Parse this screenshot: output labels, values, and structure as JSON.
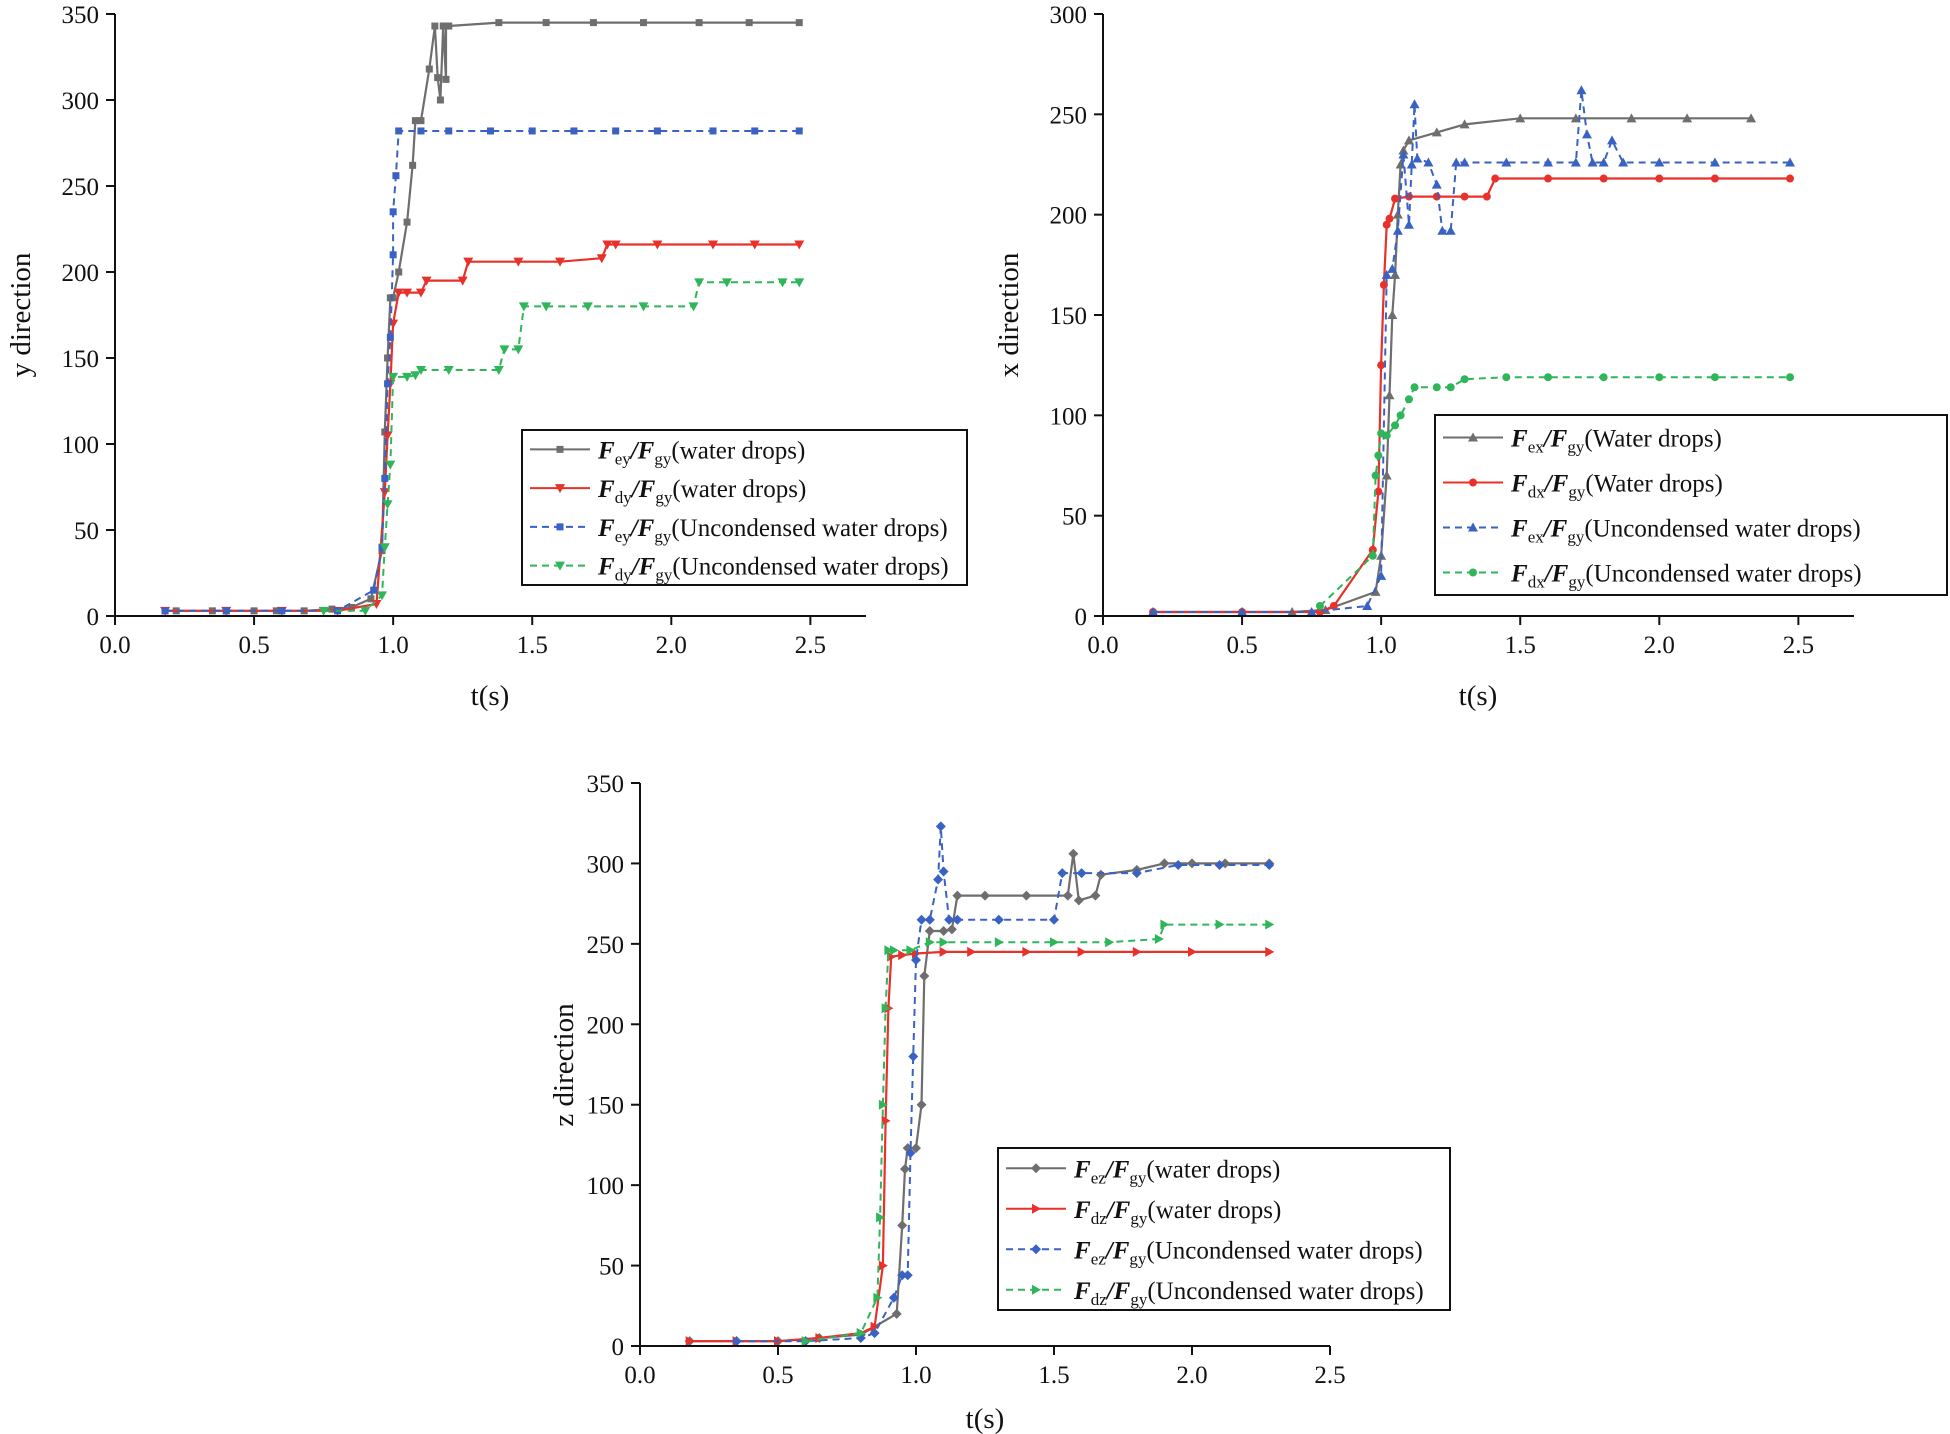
{
  "colors": {
    "gray": "#6e6e6e",
    "red": "#e8312a",
    "blue": "#3a62c2",
    "green": "#2fb55a",
    "axis": "#111111"
  },
  "chart_data": [
    {
      "type": "line",
      "id": "y",
      "xlabel": "t(s)",
      "ylabel": "y direction",
      "xlim": [
        0,
        2.7
      ],
      "ylim": [
        0,
        350
      ],
      "xticks": [
        "0.0",
        "0.5",
        "1.0",
        "1.5",
        "2.0",
        "2.5"
      ],
      "yticks": [
        "0",
        "50",
        "100",
        "150",
        "200",
        "250",
        "300",
        "350"
      ],
      "legend_position": "center-right",
      "series": [
        {
          "sym": "F",
          "sub1": "ey",
          "sub2": "gy",
          "desc": "(water drops)",
          "color": "gray",
          "dash": false,
          "marker": "square",
          "x": [
            0.18,
            0.22,
            0.35,
            0.4,
            0.5,
            0.58,
            0.68,
            0.78,
            0.85,
            0.92,
            0.96,
            0.97,
            0.98,
            0.99,
            1.0,
            1.02,
            1.05,
            1.07,
            1.08,
            1.1,
            1.13,
            1.15,
            1.16,
            1.17,
            1.18,
            1.19,
            1.19,
            1.2,
            1.38,
            1.55,
            1.72,
            1.9,
            2.1,
            2.28,
            2.46
          ],
          "y": [
            3,
            3,
            3,
            3,
            3,
            3,
            3,
            4,
            5,
            10,
            38,
            107,
            150,
            185,
            185,
            200,
            229,
            262,
            288,
            288,
            318,
            343,
            313,
            300,
            343,
            312,
            343,
            343,
            345,
            345,
            345,
            345,
            345,
            345,
            345
          ]
        },
        {
          "sym": "F",
          "sub1": "dy",
          "sub2": "gy",
          "desc": "(water drops)",
          "color": "red",
          "dash": false,
          "marker": "tri-down",
          "x": [
            0.18,
            0.4,
            0.6,
            0.8,
            0.94,
            0.97,
            0.98,
            0.99,
            1.0,
            1.02,
            1.05,
            1.1,
            1.12,
            1.25,
            1.27,
            1.45,
            1.6,
            1.75,
            1.77,
            1.8,
            1.95,
            2.15,
            2.3,
            2.46
          ],
          "y": [
            3,
            3,
            3,
            3,
            7,
            72,
            105,
            135,
            170,
            188,
            188,
            188,
            195,
            195,
            206,
            206,
            206,
            208,
            216,
            216,
            216,
            216,
            216,
            216
          ]
        },
        {
          "sym": "F",
          "sub1": "ey",
          "sub2": "gy",
          "desc": "(Uncondensed water drops)",
          "color": "blue",
          "dash": true,
          "marker": "square",
          "x": [
            0.18,
            0.4,
            0.6,
            0.8,
            0.93,
            0.96,
            0.97,
            0.98,
            0.99,
            1.0,
            1.0,
            1.01,
            1.02,
            1.1,
            1.2,
            1.35,
            1.5,
            1.65,
            1.8,
            1.95,
            2.15,
            2.3,
            2.46
          ],
          "y": [
            3,
            3,
            3,
            3,
            15,
            40,
            80,
            135,
            162,
            210,
            235,
            256,
            282,
            282,
            282,
            282,
            282,
            282,
            282,
            282,
            282,
            282,
            282
          ]
        },
        {
          "sym": "F",
          "sub1": "dy",
          "sub2": "gy",
          "desc": "(Uncondensed water drops)",
          "color": "green",
          "dash": true,
          "marker": "tri-down",
          "x": [
            0.75,
            0.9,
            0.96,
            0.97,
            0.98,
            0.99,
            1.0,
            1.05,
            1.08,
            1.1,
            1.2,
            1.38,
            1.4,
            1.45,
            1.47,
            1.55,
            1.7,
            1.9,
            2.08,
            2.1,
            2.2,
            2.4,
            2.46
          ],
          "y": [
            3,
            3,
            12,
            40,
            65,
            88,
            139,
            139,
            140,
            143,
            143,
            143,
            155,
            155,
            180,
            180,
            180,
            180,
            180,
            194,
            194,
            194,
            194
          ]
        }
      ]
    },
    {
      "type": "line",
      "id": "x",
      "xlabel": "t(s)",
      "ylabel": "x direction",
      "xlim": [
        0,
        2.7
      ],
      "ylim": [
        0,
        300
      ],
      "xticks": [
        "0.0",
        "0.5",
        "1.0",
        "1.5",
        "2.0",
        "2.5"
      ],
      "yticks": [
        "0",
        "50",
        "100",
        "150",
        "200",
        "250",
        "300"
      ],
      "legend_position": "center-right",
      "series": [
        {
          "sym": "F",
          "sub1": "ex",
          "sub2": "gy",
          "desc": "(Water drops)",
          "color": "gray",
          "dash": false,
          "marker": "tri-up",
          "x": [
            0.18,
            0.5,
            0.68,
            0.8,
            0.98,
            1.0,
            1.02,
            1.03,
            1.04,
            1.05,
            1.06,
            1.07,
            1.08,
            1.1,
            1.2,
            1.3,
            1.5,
            1.7,
            1.9,
            2.1,
            2.33
          ],
          "y": [
            2,
            2,
            2,
            3,
            12,
            30,
            70,
            110,
            150,
            170,
            200,
            225,
            232,
            237,
            241,
            245,
            248,
            248,
            248,
            248,
            248
          ]
        },
        {
          "sym": "F",
          "sub1": "dx",
          "sub2": "gy",
          "desc": "(Water drops)",
          "color": "red",
          "dash": false,
          "marker": "circle",
          "x": [
            0.18,
            0.5,
            0.78,
            0.83,
            0.97,
            0.99,
            1.0,
            1.01,
            1.02,
            1.03,
            1.05,
            1.1,
            1.2,
            1.3,
            1.38,
            1.41,
            1.6,
            1.8,
            2.0,
            2.2,
            2.47
          ],
          "y": [
            2,
            2,
            2,
            5,
            33,
            62,
            125,
            165,
            195,
            198,
            208,
            209,
            209,
            209,
            209,
            218,
            218,
            218,
            218,
            218,
            218
          ]
        },
        {
          "sym": "F",
          "sub1": "ex",
          "sub2": "gy",
          "desc": "(Uncondensed water drops)",
          "color": "blue",
          "dash": true,
          "marker": "tri-up",
          "x": [
            0.18,
            0.5,
            0.75,
            0.95,
            1.0,
            1.02,
            1.04,
            1.06,
            1.08,
            1.1,
            1.11,
            1.12,
            1.13,
            1.17,
            1.2,
            1.22,
            1.25,
            1.27,
            1.3,
            1.45,
            1.6,
            1.7,
            1.72,
            1.74,
            1.76,
            1.8,
            1.83,
            1.87,
            2.0,
            2.2,
            2.47
          ],
          "y": [
            2,
            2,
            2,
            5,
            20,
            170,
            173,
            192,
            230,
            195,
            225,
            255,
            228,
            226,
            215,
            192,
            192,
            226,
            226,
            226,
            226,
            226,
            262,
            240,
            226,
            226,
            237,
            226,
            226,
            226,
            226
          ]
        },
        {
          "sym": "F",
          "sub1": "dx",
          "sub2": "gy",
          "desc": "(Uncondensed water drops)",
          "color": "green",
          "dash": true,
          "marker": "circle",
          "x": [
            0.78,
            0.97,
            0.98,
            0.99,
            1.0,
            1.02,
            1.05,
            1.07,
            1.1,
            1.12,
            1.2,
            1.25,
            1.3,
            1.45,
            1.6,
            1.8,
            2.0,
            2.2,
            2.47
          ],
          "y": [
            5,
            30,
            70,
            80,
            91,
            90,
            95,
            100,
            108,
            114,
            114,
            114,
            118,
            119,
            119,
            119,
            119,
            119,
            119
          ]
        }
      ]
    },
    {
      "type": "line",
      "id": "z",
      "xlabel": "t(s)",
      "ylabel": "z direction",
      "xlim": [
        0,
        2.5
      ],
      "ylim": [
        0,
        350
      ],
      "xticks": [
        "0.0",
        "0.5",
        "1.0",
        "1.5",
        "2.0",
        "2.5"
      ],
      "yticks": [
        "0",
        "50",
        "100",
        "150",
        "200",
        "250",
        "300",
        "350"
      ],
      "legend_position": "bottom-right",
      "series": [
        {
          "sym": "F",
          "sub1": "ez",
          "sub2": "gy",
          "desc": "(water drops)",
          "color": "gray",
          "dash": false,
          "marker": "diamond",
          "x": [
            0.18,
            0.35,
            0.5,
            0.65,
            0.8,
            0.93,
            0.95,
            0.96,
            0.97,
            1.0,
            1.02,
            1.03,
            1.05,
            1.1,
            1.13,
            1.15,
            1.25,
            1.4,
            1.55,
            1.57,
            1.59,
            1.65,
            1.67,
            1.8,
            1.9,
            2.0,
            2.12,
            2.28
          ],
          "y": [
            3,
            3,
            3,
            5,
            7,
            20,
            75,
            110,
            123,
            123,
            150,
            230,
            258,
            258,
            259,
            280,
            280,
            280,
            280,
            306,
            277,
            280,
            293,
            296,
            300,
            300,
            300,
            300
          ]
        },
        {
          "sym": "F",
          "sub1": "dz",
          "sub2": "gy",
          "desc": "(water drops)",
          "color": "red",
          "dash": false,
          "marker": "tri-right",
          "x": [
            0.18,
            0.35,
            0.5,
            0.65,
            0.8,
            0.85,
            0.88,
            0.89,
            0.9,
            0.91,
            0.95,
            1.0,
            1.1,
            1.2,
            1.4,
            1.6,
            1.8,
            2.0,
            2.28
          ],
          "y": [
            3,
            3,
            3,
            5,
            8,
            12,
            50,
            140,
            210,
            242,
            243,
            244,
            245,
            245,
            245,
            245,
            245,
            245,
            245
          ]
        },
        {
          "sym": "F",
          "sub1": "ez",
          "sub2": "gy",
          "desc": "(Uncondensed water drops)",
          "color": "blue",
          "dash": true,
          "marker": "diamond",
          "x": [
            0.35,
            0.6,
            0.8,
            0.85,
            0.92,
            0.95,
            0.97,
            0.98,
            0.99,
            1.0,
            1.02,
            1.05,
            1.08,
            1.09,
            1.1,
            1.12,
            1.15,
            1.3,
            1.5,
            1.53,
            1.6,
            1.8,
            1.95,
            2.1,
            2.28
          ],
          "y": [
            3,
            3,
            5,
            8,
            30,
            44,
            44,
            120,
            180,
            240,
            265,
            265,
            290,
            323,
            295,
            265,
            265,
            265,
            265,
            294,
            294,
            294,
            299,
            299,
            299
          ]
        },
        {
          "sym": "F",
          "sub1": "dz",
          "sub2": "gy",
          "desc": "(Uncondensed water drops)",
          "color": "green",
          "dash": true,
          "marker": "tri-right",
          "x": [
            0.6,
            0.8,
            0.86,
            0.87,
            0.88,
            0.89,
            0.9,
            0.92,
            0.98,
            1.05,
            1.1,
            1.3,
            1.5,
            1.7,
            1.88,
            1.9,
            2.1,
            2.28
          ],
          "y": [
            3,
            8,
            30,
            80,
            150,
            210,
            246,
            246,
            246,
            251,
            251,
            251,
            251,
            251,
            253,
            262,
            262,
            262
          ]
        }
      ]
    }
  ]
}
